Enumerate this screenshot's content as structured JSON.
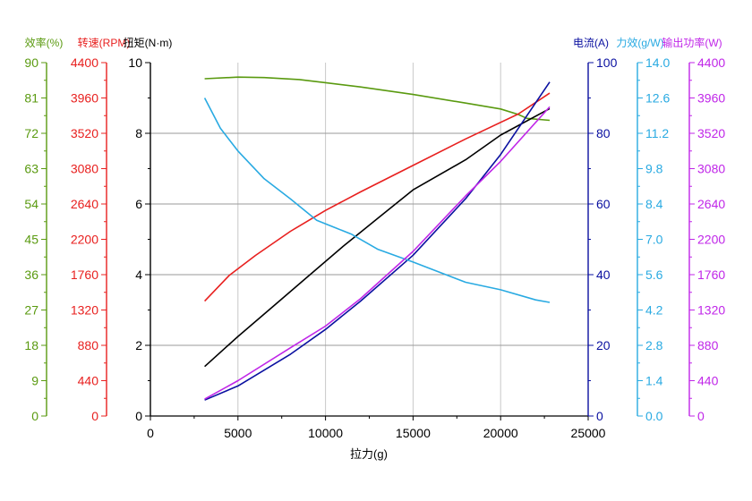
{
  "chart_data": {
    "type": "line",
    "xlabel": "拉力(g)",
    "xlim": [
      0,
      25000
    ],
    "x_ticks": [
      "0",
      "5000",
      "10000",
      "15000",
      "20000",
      "25000"
    ],
    "grid": "on",
    "axes": [
      {
        "key": "eff",
        "label": "效率(%)",
        "color": "#5a9a10",
        "side": "left",
        "ylim": [
          0,
          90
        ],
        "ticks": [
          "0",
          "9",
          "18",
          "27",
          "36",
          "45",
          "54",
          "63",
          "72",
          "81",
          "90"
        ]
      },
      {
        "key": "rpm",
        "label": "转速(RPM)",
        "color": "#e8201f",
        "side": "left",
        "ylim": [
          0,
          4400
        ],
        "ticks": [
          "0",
          "440",
          "880",
          "1320",
          "1760",
          "2200",
          "2640",
          "3080",
          "3520",
          "3960",
          "4400"
        ]
      },
      {
        "key": "torque",
        "label": "扭矩(N·m)",
        "color": "#000000",
        "side": "left",
        "ylim": [
          0,
          10
        ],
        "ticks": [
          "0",
          "2",
          "4",
          "6",
          "8",
          "10"
        ]
      },
      {
        "key": "current",
        "label": "电流(A)",
        "color": "#0a10a0",
        "side": "right",
        "ylim": [
          0,
          100
        ],
        "ticks": [
          "0",
          "20",
          "40",
          "60",
          "80",
          "100"
        ]
      },
      {
        "key": "force_eff",
        "label": "力效(g/W)",
        "color": "#29aae2",
        "side": "right",
        "ylim": [
          0,
          14
        ],
        "ticks": [
          "0.0",
          "1.4",
          "2.8",
          "4.2",
          "5.6",
          "7.0",
          "8.4",
          "9.8",
          "11.2",
          "12.6",
          "14.0"
        ]
      },
      {
        "key": "power",
        "label": "输出功率(W)",
        "color": "#c026e8",
        "side": "right",
        "ylim": [
          0,
          4400
        ],
        "ticks": [
          "0",
          "440",
          "880",
          "1320",
          "1760",
          "2200",
          "2640",
          "3080",
          "3520",
          "3960",
          "4400"
        ]
      }
    ],
    "series": [
      {
        "key": "eff",
        "axis": "eff",
        "color": "#5a9a10",
        "x": [
          3100,
          5000,
          6500,
          8500,
          10000,
          12000,
          15000,
          18000,
          20000,
          21000,
          21500,
          22800
        ],
        "y": [
          85.9,
          86.3,
          86.2,
          85.7,
          84.9,
          83.8,
          81.9,
          79.7,
          78.2,
          76.8,
          75.8,
          75.3
        ]
      },
      {
        "key": "rpm",
        "axis": "rpm",
        "color": "#e8201f",
        "x": [
          3100,
          4500,
          6000,
          8000,
          10000,
          12000,
          15000,
          18000,
          21000,
          22800
        ],
        "y": [
          1430,
          1750,
          2000,
          2300,
          2560,
          2790,
          3120,
          3450,
          3760,
          4020
        ]
      },
      {
        "key": "torque",
        "axis": "torque",
        "color": "#000000",
        "x": [
          3100,
          5000,
          7000,
          9000,
          11000,
          13000,
          15000,
          18000,
          20000,
          22800
        ],
        "y": [
          1.4,
          2.25,
          3.1,
          3.95,
          4.8,
          5.6,
          6.4,
          7.25,
          7.95,
          8.7
        ]
      },
      {
        "key": "current",
        "axis": "current",
        "color": "#0a10a0",
        "x": [
          3100,
          5000,
          8000,
          10000,
          12000,
          15000,
          18000,
          20000,
          22800
        ],
        "y": [
          4.5,
          8.5,
          17.5,
          24.5,
          32.5,
          45.5,
          61.5,
          74,
          94.5
        ]
      },
      {
        "key": "force_eff",
        "axis": "force_eff",
        "color": "#29aae2",
        "x": [
          3100,
          4000,
          5000,
          6500,
          8000,
          9500,
          11500,
          13000,
          15000,
          18000,
          20000,
          22000,
          22800
        ],
        "y": [
          12.6,
          11.4,
          10.5,
          9.4,
          8.6,
          7.75,
          7.2,
          6.6,
          6.1,
          5.3,
          5.0,
          4.6,
          4.5
        ]
      },
      {
        "key": "power",
        "axis": "power",
        "color": "#c026e8",
        "x": [
          3100,
          5000,
          8000,
          10000,
          12000,
          15000,
          18000,
          20000,
          22800
        ],
        "y": [
          210,
          440,
          850,
          1120,
          1460,
          2050,
          2740,
          3170,
          3850
        ]
      }
    ]
  }
}
